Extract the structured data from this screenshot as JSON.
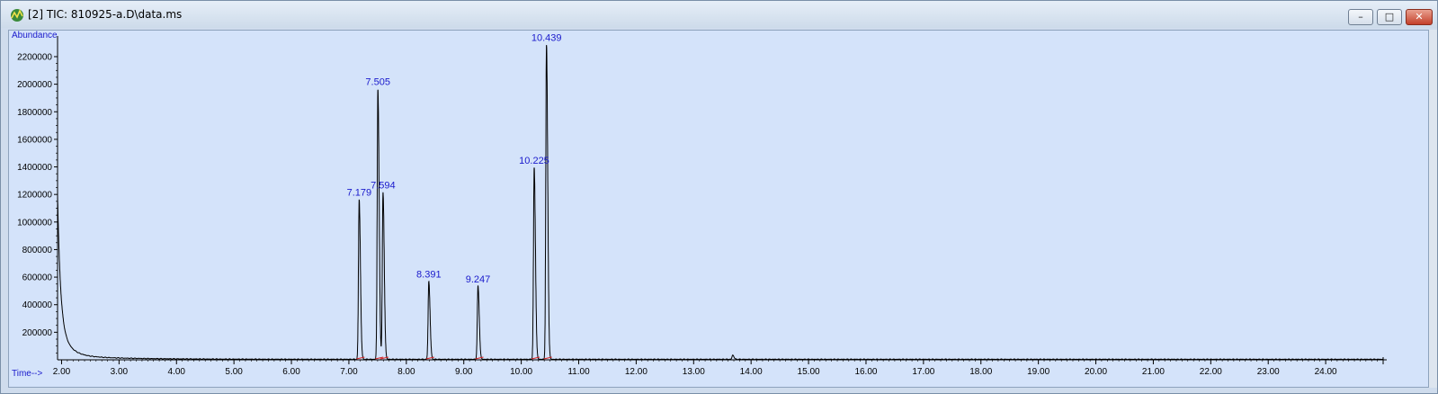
{
  "window": {
    "title": "[2] TIC: 810925-a.D\\data.ms",
    "icon": "chromatogram-app-icon",
    "controls": {
      "minimize": "–",
      "maximize": "□",
      "close": "✕"
    }
  },
  "colors": {
    "plot_background": "#d4e3fa",
    "trace": "#000000",
    "peak_label": "#1a1acc",
    "baseline_marker": "#d42020"
  },
  "chart_data": {
    "type": "line",
    "ylabel": "Abundance",
    "xlabel": "Time-->",
    "xlim": [
      1.93,
      25.0
    ],
    "ylim": [
      0,
      2350000
    ],
    "x_ticks": [
      "2.00",
      "3.00",
      "4.00",
      "5.00",
      "6.00",
      "7.00",
      "8.00",
      "9.00",
      "10.00",
      "11.00",
      "12.00",
      "13.00",
      "14.00",
      "15.00",
      "16.00",
      "17.00",
      "18.00",
      "19.00",
      "20.00",
      "21.00",
      "22.00",
      "23.00",
      "24.00"
    ],
    "y_ticks": [
      "200000",
      "400000",
      "600000",
      "800000",
      "1000000",
      "1200000",
      "1400000",
      "1600000",
      "1800000",
      "2000000",
      "2200000"
    ],
    "solvent_front": {
      "start_time": 1.93,
      "start_abundance": 1200000
    },
    "peaks": [
      {
        "label": "7.179",
        "time": 7.179,
        "abundance": 1160000
      },
      {
        "label": "7.505",
        "time": 7.505,
        "abundance": 1960000
      },
      {
        "label": "7.594",
        "time": 7.594,
        "abundance": 1210000
      },
      {
        "label": "8.391",
        "time": 8.391,
        "abundance": 565000
      },
      {
        "label": "9.247",
        "time": 9.247,
        "abundance": 530000
      },
      {
        "label": "10.225",
        "time": 10.225,
        "abundance": 1390000
      },
      {
        "label": "10.439",
        "time": 10.439,
        "abundance": 2280000
      }
    ],
    "minor_peaks": [
      {
        "time": 13.68,
        "abundance": 30000
      }
    ]
  }
}
